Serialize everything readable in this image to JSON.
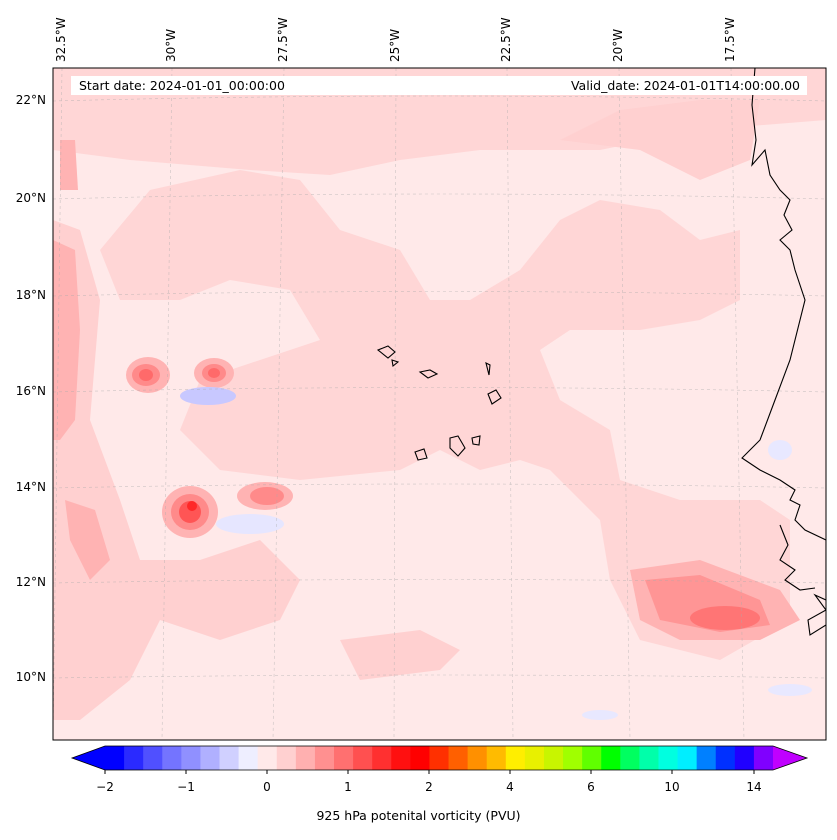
{
  "map": {
    "start_date": "Start date: 2024-01-01_00:00:00",
    "valid_date": "Valid_date: 2024-01-01T14:00:00.00",
    "lon_labels": [
      "32.5°W",
      "30°W",
      "27.5°W",
      "25°W",
      "22.5°W",
      "20°W",
      "17.5°W"
    ],
    "lat_labels": [
      "22°N",
      "20°N",
      "18°N",
      "16°N",
      "14°N",
      "12°N",
      "10°N"
    ],
    "variable": "925 hPa potential vorticity",
    "colors": {
      "background_field": "#ffe9e9",
      "coastline": "#000000"
    }
  },
  "colorbar": {
    "label": "925 hPa potenital vorticity (PVU)",
    "tick_labels": [
      "−2",
      "−1",
      "0",
      "1",
      "2",
      "4",
      "6",
      "10",
      "14"
    ],
    "colors": [
      "#0000ff",
      "#2a2aff",
      "#5050ff",
      "#7474ff",
      "#9090ff",
      "#b0b0ff",
      "#d0d0ff",
      "#eeeeff",
      "#ffe9e9",
      "#ffd0d0",
      "#ffb0b0",
      "#ff9090",
      "#ff7070",
      "#ff5050",
      "#ff3030",
      "#ff1010",
      "#ff0000",
      "#ff3000",
      "#ff6000",
      "#ff9000",
      "#ffbb00",
      "#ffee00",
      "#e8f000",
      "#c8f500",
      "#a0ff00",
      "#60ff00",
      "#00ff00",
      "#00ff60",
      "#00ffaa",
      "#00ffe0",
      "#00eeff",
      "#0080ff",
      "#0030ff",
      "#2000ff",
      "#8000ff"
    ],
    "extend_low_color": "#0000ff",
    "extend_high_color": "#c000ff"
  }
}
